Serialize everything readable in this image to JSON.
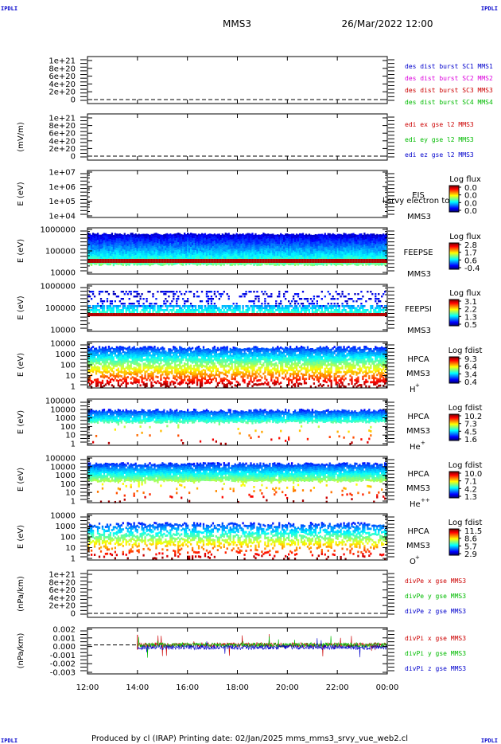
{
  "corner_label": "IPDLI",
  "header": {
    "spacecraft": "MMS3",
    "datetime": "26/Mar/2022 12:00"
  },
  "footer": "Produced by cl (IRAP)   Printing date: 02/Jan/2025   mms_mms3_srvy_vue_web2.cl",
  "chart_data": [
    {
      "id": "des_dist",
      "type": "line",
      "ylabel": "",
      "yticks": [
        "1e+21",
        "8e+20",
        "6e+20",
        "4e+20",
        "2e+20",
        "0"
      ],
      "series": [
        {
          "name": "des dist burst SC1 MMS1",
          "color": "#0000cc"
        },
        {
          "name": "des dist burst SC2 MMS2",
          "color": "#dd00dd"
        },
        {
          "name": "des dist burst SC3 MMS3",
          "color": "#cc0000"
        },
        {
          "name": "des dist burst SC4 MMS4",
          "color": "#00bb00"
        }
      ]
    },
    {
      "id": "edi",
      "type": "line",
      "ylabel": "(mV/m)",
      "yticks": [
        "1e+21",
        "8e+20",
        "6e+20",
        "4e+20",
        "2e+20",
        "0"
      ],
      "series": [
        {
          "name": "edi ex gse l2 MMS3",
          "color": "#cc0000"
        },
        {
          "name": "edi ey gse l2 MMS3",
          "color": "#00bb00"
        },
        {
          "name": "edi ez gse l2 MMS3",
          "color": "#0000cc"
        }
      ]
    },
    {
      "id": "eis",
      "type": "heatmap",
      "ylabel": "E (eV)",
      "yticks": [
        "1e+07",
        "1e+06",
        "1e+05",
        "1e+04"
      ],
      "instrument": [
        "EIS",
        "MMS3"
      ],
      "overlay_text": "l srvy electron to",
      "colorbar": {
        "title": "Log flux",
        "ticks": [
          "0.0",
          "0.0",
          "0.0",
          "0.0"
        ]
      }
    },
    {
      "id": "feepse",
      "type": "heatmap",
      "ylabel": "E (eV)",
      "yticks": [
        "1000000",
        "100000",
        "10000"
      ],
      "instrument": [
        "FEEPSE",
        "MMS3"
      ],
      "colorbar": {
        "title": "Log flux",
        "ticks": [
          "2.8",
          "1.7",
          "0.6",
          "-0.4"
        ]
      }
    },
    {
      "id": "feepsi",
      "type": "heatmap",
      "ylabel": "E (eV)",
      "yticks": [
        "1000000",
        "100000",
        "10000"
      ],
      "instrument": [
        "FEEPSI",
        "MMS3"
      ],
      "colorbar": {
        "title": "Log flux",
        "ticks": [
          "3.1",
          "2.2",
          "1.3",
          "0.5"
        ]
      }
    },
    {
      "id": "hpca_h",
      "type": "heatmap",
      "ylabel": "E (eV)",
      "yticks": [
        "10000",
        "1000",
        "100",
        "10",
        "1"
      ],
      "instrument": [
        "HPCA",
        "MMS3"
      ],
      "species": "H",
      "charge": "+",
      "colorbar": {
        "title": "Log fdist",
        "ticks": [
          "9.3",
          "6.4",
          "3.4",
          "0.4"
        ]
      }
    },
    {
      "id": "hpca_he",
      "type": "heatmap",
      "ylabel": "E (eV)",
      "yticks": [
        "100000",
        "10000",
        "1000",
        "100",
        "10",
        "1"
      ],
      "instrument": [
        "HPCA",
        "MMS3"
      ],
      "species": "He",
      "charge": "+",
      "colorbar": {
        "title": "Log fdist",
        "ticks": [
          "10.2",
          "7.3",
          "4.5",
          "1.6"
        ]
      }
    },
    {
      "id": "hpca_hepp",
      "type": "heatmap",
      "ylabel": "E (eV)",
      "yticks": [
        "100000",
        "10000",
        "1000",
        "100",
        "10",
        "1"
      ],
      "instrument": [
        "HPCA",
        "MMS3"
      ],
      "species": "He",
      "charge": "++",
      "colorbar": {
        "title": "Log fdist",
        "ticks": [
          "10.0",
          "7.1",
          "4.2",
          "1.3"
        ]
      }
    },
    {
      "id": "hpca_o",
      "type": "heatmap",
      "ylabel": "E (eV)",
      "yticks": [
        "10000",
        "1000",
        "100",
        "10",
        "1"
      ],
      "instrument": [
        "HPCA",
        "MMS3"
      ],
      "species": "O",
      "charge": "+",
      "colorbar": {
        "title": "Log fdist",
        "ticks": [
          "11.5",
          "8.6",
          "5.7",
          "2.9"
        ]
      }
    },
    {
      "id": "divpe",
      "type": "line",
      "ylabel": "(nPa/km)",
      "yticks": [
        "1e+21",
        "8e+20",
        "6e+20",
        "4e+20",
        "2e+20",
        "0"
      ],
      "series": [
        {
          "name": "divPe x gse MMS3",
          "color": "#cc0000"
        },
        {
          "name": "divPe y gse MMS3",
          "color": "#00bb00"
        },
        {
          "name": "divPe z gse MMS3",
          "color": "#0000cc"
        }
      ]
    },
    {
      "id": "divpi",
      "type": "line",
      "ylabel": "(nPa/km)",
      "yticks": [
        "0.002",
        "0.001",
        "0.000",
        "-0.001",
        "-0.002",
        "-0.003"
      ],
      "ylim": [
        -0.0035,
        0.002
      ],
      "series": [
        {
          "name": "divPi x gse MMS3",
          "color": "#cc0000"
        },
        {
          "name": "divPi y gse MMS3",
          "color": "#00bb00"
        },
        {
          "name": "divPi z gse MMS3",
          "color": "#0000cc"
        }
      ]
    }
  ],
  "xaxis": {
    "ticks": [
      "12:00",
      "14:00",
      "16:00",
      "18:00",
      "20:00",
      "22:00",
      "00:00"
    ],
    "data_start": "14:00"
  }
}
